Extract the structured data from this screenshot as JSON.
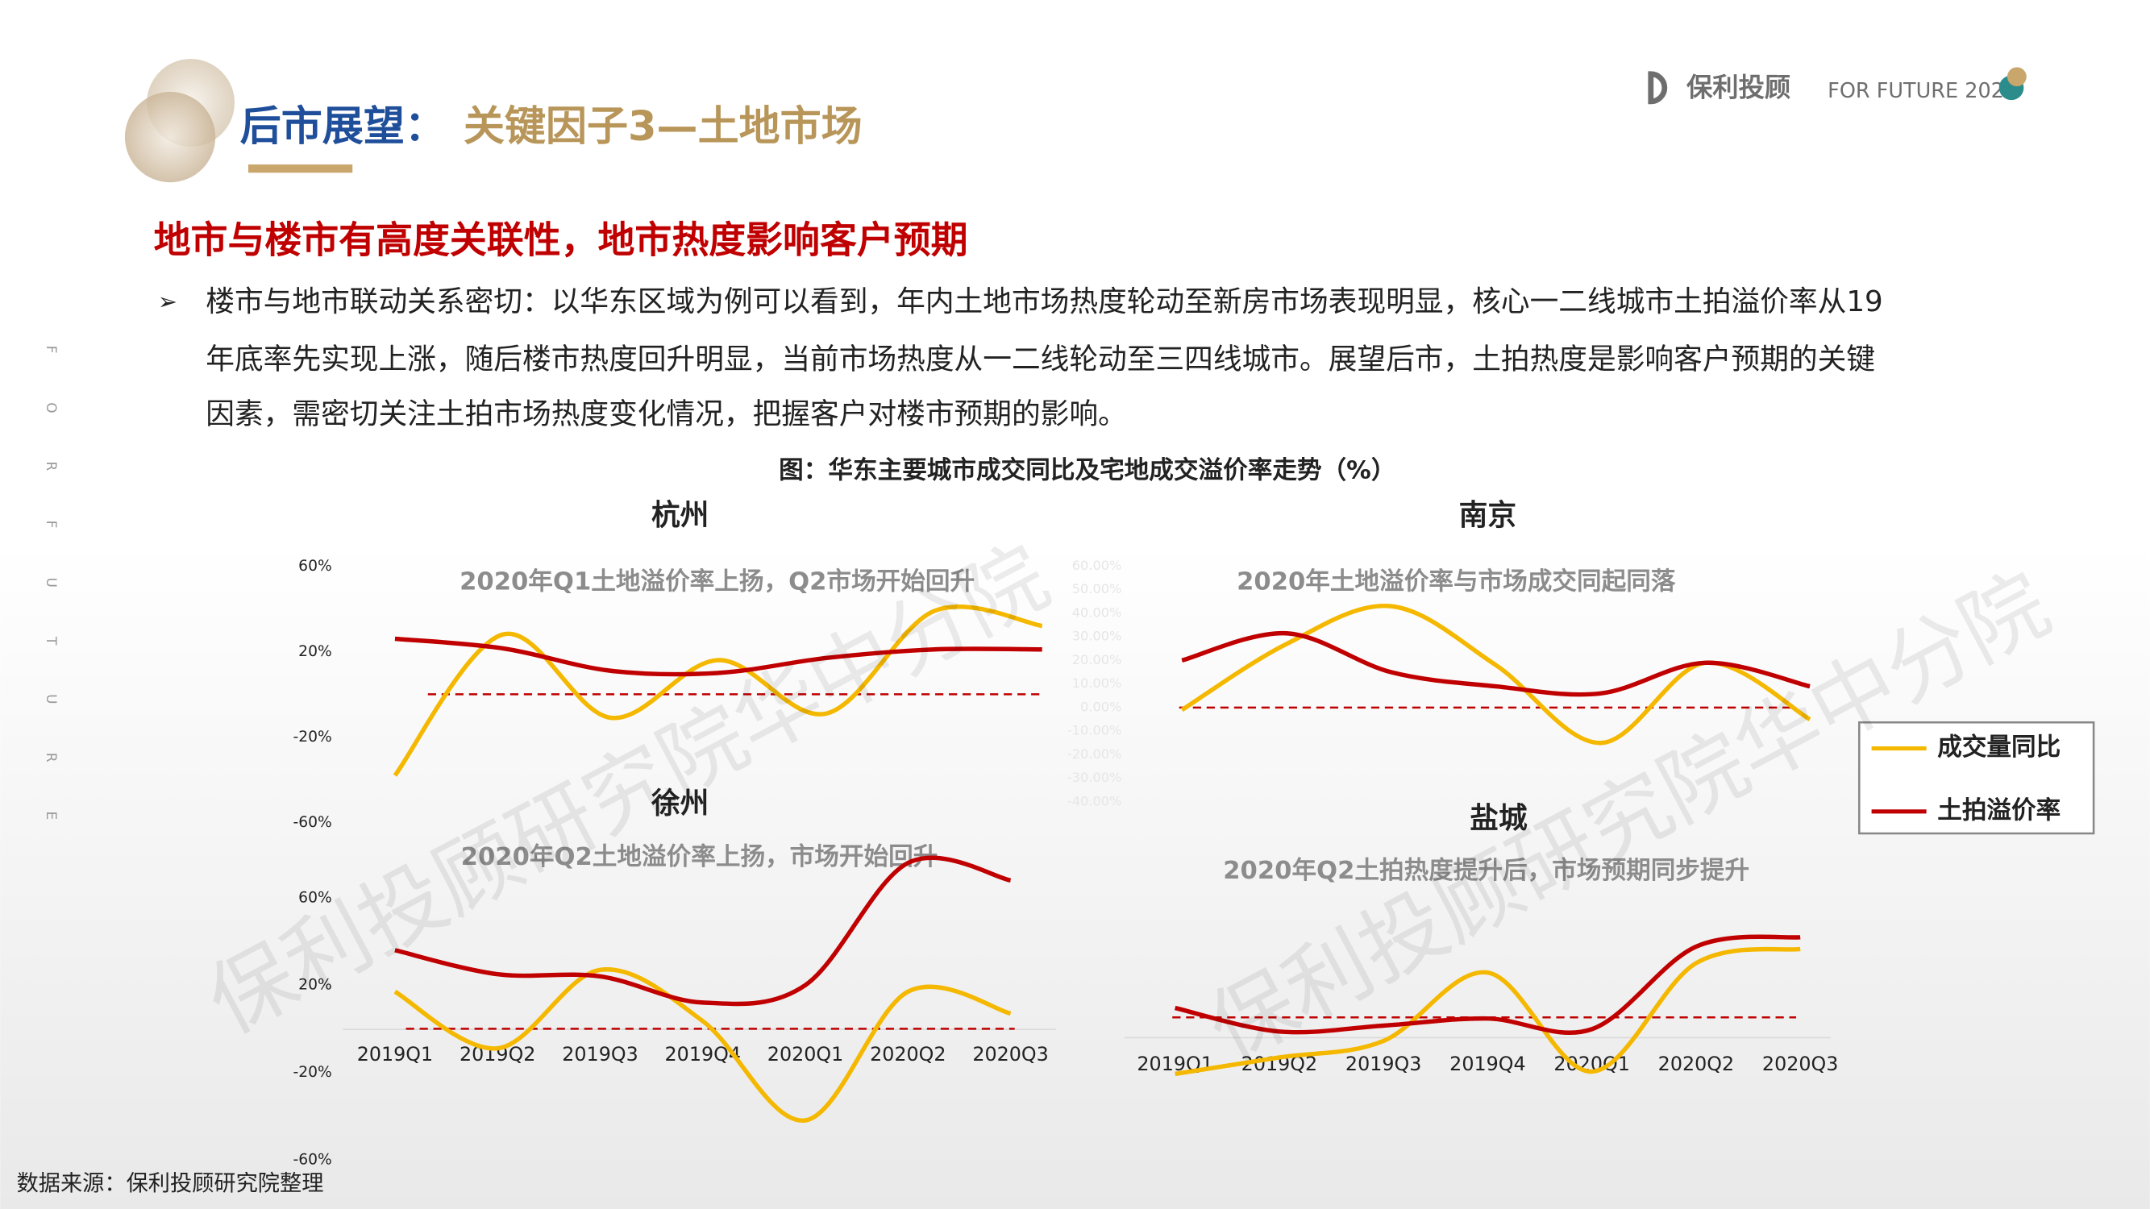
{
  "header": {
    "title_lead": "后市展望：",
    "title_main": "关键因子3—土地市场",
    "logo": "保利投顾",
    "slogan": "FOR FUTURE 2020"
  },
  "side_text": [
    "F",
    "O",
    "R",
    "F",
    "U",
    "T",
    "U",
    "R",
    "E"
  ],
  "subheading": "地市与楼市有高度关联性，地市热度影响客户预期",
  "bullet": [
    "楼市与地市联动关系密切：以华东区域为例可以看到，年内土地市场热度轮动至新房市场表现明显，核心一二线城市土拍溢价率从19",
    "年底率先实现上涨，随后楼市热度回升明显，当前市场热度从一二线轮动至三四线城市。展望后市，土拍热度是影响客户预期的关键",
    "因素，需密切关注土拍市场热度变化情况，把握客户对楼市预期的影响。"
  ],
  "figure_title": "图：华东主要城市成交同比及宅地成交溢价率走势（%）",
  "source": "数据来源：保利投顾研究院整理",
  "watermark": "保利投顾研究院华中分院",
  "chart_data": [
    {
      "type": "line",
      "title": "杭州",
      "annotation": "2020年Q1土地溢价率上扬，Q2市场开始回升",
      "categories": [
        null,
        null,
        null,
        null,
        null,
        null,
        null
      ],
      "series": [
        {
          "name": "成交量同比",
          "color": "#f5b800",
          "values": [
            -38,
            28,
            -11,
            16,
            -9,
            39,
            32
          ]
        },
        {
          "name": "土拍溢价率",
          "color": "#c00000",
          "values": [
            26,
            21.5,
            11,
            10,
            17,
            21,
            21
          ]
        }
      ],
      "ylim": [
        -60,
        60
      ],
      "yticks": [
        {
          "value": 60,
          "label": "60%"
        },
        {
          "value": 20,
          "label": "20%"
        },
        {
          "value": -20,
          "label": "-20%"
        },
        {
          "value": -60,
          "label": "-60%"
        }
      ]
    },
    {
      "type": "line",
      "title": "南京",
      "annotation": "2020年土地溢价率与市场成交同起同落",
      "categories": [
        null,
        null,
        null,
        null,
        null,
        null,
        null
      ],
      "series": [
        {
          "name": "成交量同比",
          "color": "#f5b800",
          "values": [
            -1,
            27,
            43,
            18,
            -15,
            19,
            -5
          ]
        },
        {
          "name": "土拍溢价率",
          "color": "#c00000",
          "values": [
            20,
            31.5,
            15,
            9,
            6,
            19,
            9
          ]
        }
      ],
      "ylim": [
        -40,
        60
      ],
      "yticks": [
        {
          "value": 60,
          "label": "60.00%"
        },
        {
          "value": 50,
          "label": "50.00%"
        },
        {
          "value": 40,
          "label": "40.00%"
        },
        {
          "value": 30,
          "label": "30.00%"
        },
        {
          "value": 20,
          "label": "20.00%"
        },
        {
          "value": 10,
          "label": "10.00%"
        },
        {
          "value": 0,
          "label": "0.00%"
        },
        {
          "value": -10,
          "label": "-10.00%"
        },
        {
          "value": -20,
          "label": "-20.00%"
        },
        {
          "value": -30,
          "label": "-30.00%"
        },
        {
          "value": -40,
          "label": "-40.00%"
        }
      ]
    },
    {
      "type": "line",
      "title": "徐州",
      "annotation": "2020年Q2土地溢价率上扬，市场开始回升",
      "categories": [
        "2019Q1",
        "2019Q2",
        "2019Q3",
        "2019Q4",
        "2020Q1",
        "2020Q2",
        "2020Q3"
      ],
      "series": [
        {
          "name": "成交量同比",
          "color": "#f5b800",
          "values": [
            17,
            -9,
            27,
            3.5,
            -42,
            17,
            7
          ]
        },
        {
          "name": "土拍溢价率",
          "color": "#c00000",
          "values": [
            36,
            25,
            24,
            12,
            20,
            76,
            68
          ]
        }
      ],
      "ylim": [
        -60,
        60
      ],
      "yticks": [
        {
          "value": 60,
          "label": "60%"
        },
        {
          "value": 20,
          "label": "20%"
        },
        {
          "value": -20,
          "label": "-20%"
        },
        {
          "value": -60,
          "label": "-60%"
        }
      ]
    },
    {
      "type": "line",
      "title": "盐城",
      "annotation": "2020年Q2土拍热度提升后，市场预期同步提升",
      "categories": [
        "2019Q1",
        "2019Q2",
        "2019Q3",
        "2019Q4",
        "2020Q1",
        "2020Q2",
        "2020Q3"
      ],
      "series": [
        {
          "name": "成交量同比",
          "color": "#f5b800",
          "values": [
            -24,
            -17,
            -10,
            19,
            -23,
            23,
            29
          ]
        },
        {
          "name": "土拍溢价率",
          "color": "#c00000",
          "values": [
            4,
            -6,
            -3.5,
            -0.5,
            -5,
            30,
            34
          ]
        }
      ],
      "ylim": [
        -40,
        60
      ]
    }
  ]
}
